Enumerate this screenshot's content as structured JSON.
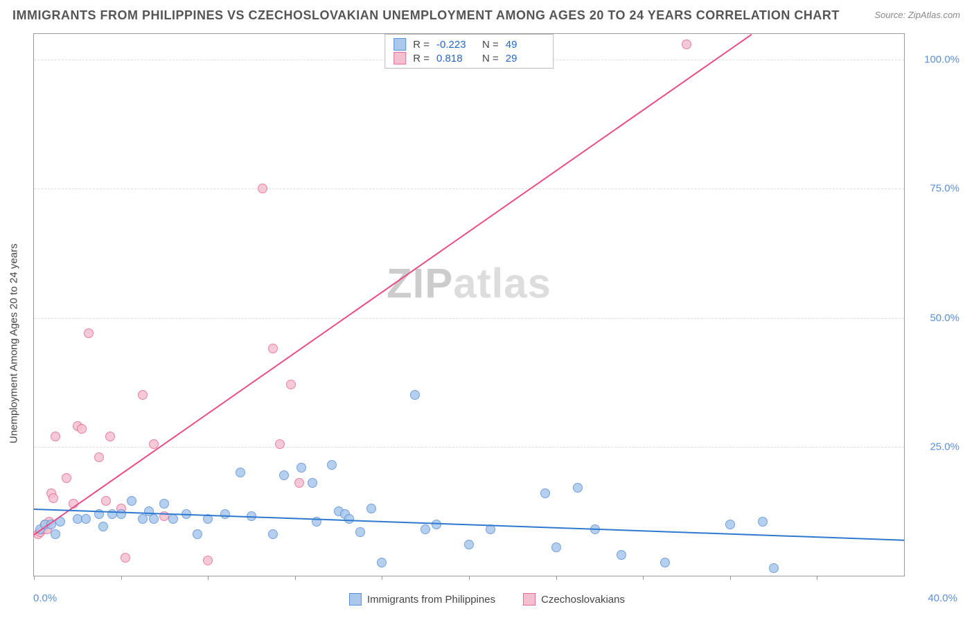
{
  "title": "IMMIGRANTS FROM PHILIPPINES VS CZECHOSLOVAKIAN UNEMPLOYMENT AMONG AGES 20 TO 24 YEARS CORRELATION CHART",
  "source": "Source: ZipAtlas.com",
  "watermark_a": "ZIP",
  "watermark_b": "atlas",
  "y_axis_label": "Unemployment Among Ages 20 to 24 years",
  "x_min": 0.0,
  "x_max": 40.0,
  "y_min": 0.0,
  "y_max": 105.0,
  "y_ticks": [
    25.0,
    50.0,
    75.0,
    100.0
  ],
  "y_tick_labels": [
    "25.0%",
    "50.0%",
    "75.0%",
    "100.0%"
  ],
  "x_tick_positions": [
    0,
    4,
    8,
    12,
    16,
    20,
    24,
    28,
    32,
    36
  ],
  "x_min_label": "0.0%",
  "x_max_label": "40.0%",
  "series_a": {
    "name": "Immigrants from Philippines",
    "color_fill": "#a9c8ec",
    "color_stroke": "#5b8fd6",
    "r_label": "R =",
    "r_value": "-0.223",
    "n_label": "N =",
    "n_value": "49",
    "trend": {
      "x1": 0.0,
      "y1": 13.0,
      "x2": 40.0,
      "y2": 7.0,
      "color": "#2f78d0",
      "width": 2
    },
    "points": [
      [
        0.3,
        9.0
      ],
      [
        0.5,
        10.0
      ],
      [
        0.8,
        10.0
      ],
      [
        1.0,
        8.0
      ],
      [
        1.2,
        10.5
      ],
      [
        2.0,
        11.0
      ],
      [
        2.4,
        11.0
      ],
      [
        3.0,
        12.0
      ],
      [
        3.2,
        9.5
      ],
      [
        3.6,
        12.0
      ],
      [
        4.0,
        12.0
      ],
      [
        4.5,
        14.5
      ],
      [
        5.0,
        11.0
      ],
      [
        5.3,
        12.5
      ],
      [
        5.5,
        11.0
      ],
      [
        6.0,
        14.0
      ],
      [
        6.4,
        11.0
      ],
      [
        7.0,
        12.0
      ],
      [
        7.5,
        8.0
      ],
      [
        8.0,
        11.0
      ],
      [
        8.8,
        12.0
      ],
      [
        9.5,
        20.0
      ],
      [
        10.0,
        11.5
      ],
      [
        11.0,
        8.0
      ],
      [
        11.5,
        19.5
      ],
      [
        12.3,
        21.0
      ],
      [
        12.8,
        18.0
      ],
      [
        13.0,
        10.5
      ],
      [
        13.7,
        21.5
      ],
      [
        14.0,
        12.5
      ],
      [
        14.3,
        12.0
      ],
      [
        14.5,
        11.0
      ],
      [
        15.0,
        8.5
      ],
      [
        15.5,
        13.0
      ],
      [
        16.0,
        2.5
      ],
      [
        17.5,
        35.0
      ],
      [
        18.0,
        9.0
      ],
      [
        18.5,
        10.0
      ],
      [
        20.0,
        6.0
      ],
      [
        21.0,
        9.0
      ],
      [
        23.5,
        16.0
      ],
      [
        24.0,
        5.5
      ],
      [
        25.0,
        17.0
      ],
      [
        25.8,
        9.0
      ],
      [
        27.0,
        4.0
      ],
      [
        29.0,
        2.5
      ],
      [
        32.0,
        10.0
      ],
      [
        34.0,
        1.5
      ],
      [
        33.5,
        10.5
      ]
    ]
  },
  "series_b": {
    "name": "Czechoslovakians",
    "color_fill": "#f4c0cf",
    "color_stroke": "#e76a94",
    "r_label": "R =",
    "r_value": "0.818",
    "n_label": "N =",
    "n_value": "29",
    "trend": {
      "x1": 0.0,
      "y1": 8.0,
      "x2": 33.0,
      "y2": 105.0,
      "color": "#e84b86",
      "width": 2
    },
    "points": [
      [
        0.2,
        8.0
      ],
      [
        0.3,
        8.5
      ],
      [
        0.4,
        9.0
      ],
      [
        0.5,
        10.0
      ],
      [
        0.6,
        9.0
      ],
      [
        0.7,
        10.5
      ],
      [
        0.8,
        16.0
      ],
      [
        0.9,
        15.0
      ],
      [
        1.0,
        27.0
      ],
      [
        1.5,
        19.0
      ],
      [
        1.8,
        14.0
      ],
      [
        2.0,
        29.0
      ],
      [
        2.2,
        28.5
      ],
      [
        2.5,
        47.0
      ],
      [
        3.0,
        23.0
      ],
      [
        3.3,
        14.5
      ],
      [
        3.5,
        27.0
      ],
      [
        4.0,
        13.0
      ],
      [
        4.2,
        3.5
      ],
      [
        5.0,
        35.0
      ],
      [
        5.5,
        25.5
      ],
      [
        6.0,
        11.5
      ],
      [
        8.0,
        3.0
      ],
      [
        10.5,
        75.0
      ],
      [
        11.0,
        44.0
      ],
      [
        11.3,
        25.5
      ],
      [
        11.8,
        37.0
      ],
      [
        12.2,
        18.0
      ],
      [
        30.0,
        103.0
      ]
    ]
  },
  "marker_radius": 7,
  "marker_opacity": 0.85,
  "background_color": "#ffffff",
  "grid_color": "#dddddd",
  "axis_color": "#999999"
}
